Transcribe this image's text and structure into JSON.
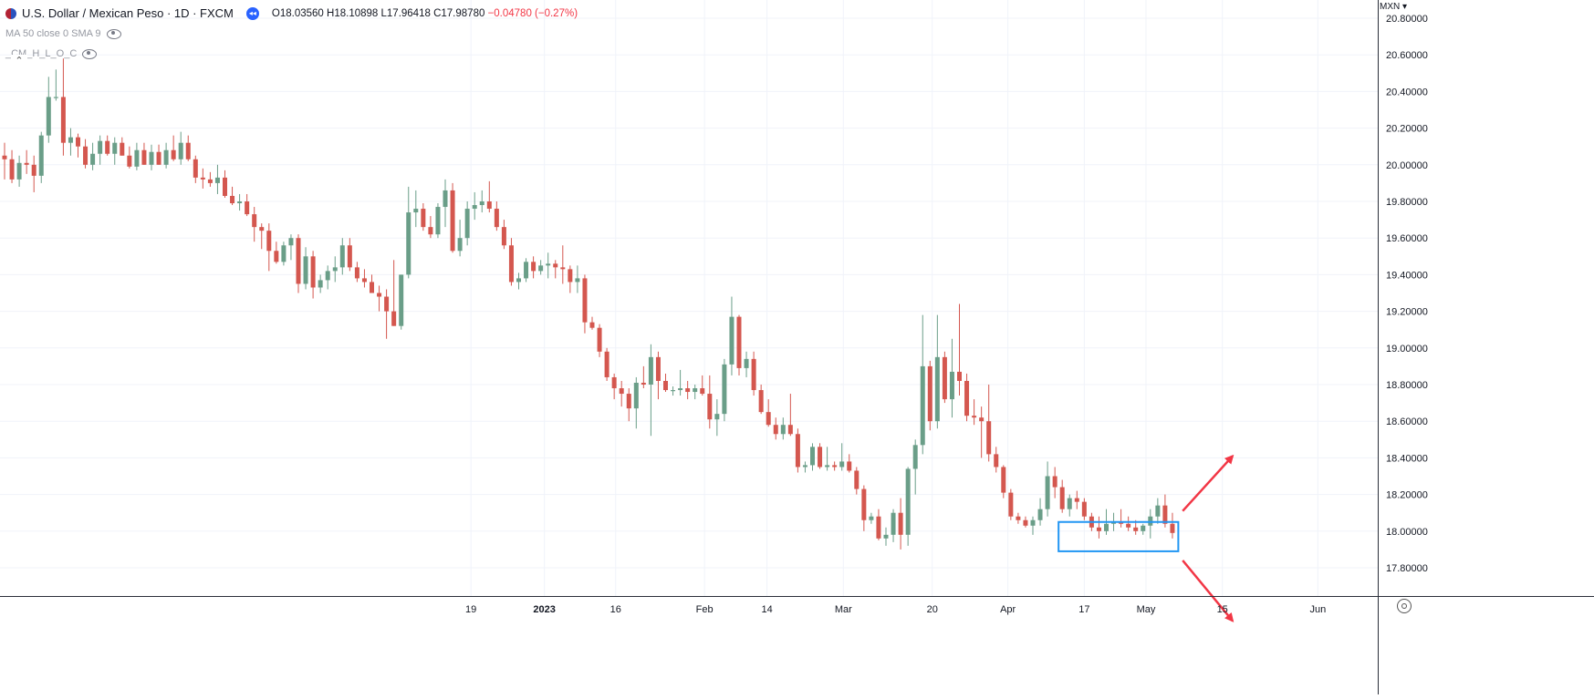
{
  "header": {
    "symbol_title": "U.S. Dollar / Mexican Peso · 1D · FXCM",
    "open_label": "O",
    "open": "18.03560",
    "high_label": "H",
    "high": "18.10898",
    "low_label": "L",
    "low": "17.96418",
    "close_label": "C",
    "close": "17.98780",
    "change": "−0.04780 (−0.27%)",
    "indicator_1": "MA 50 close 0 SMA 9",
    "indicator_2": "_CM_H_L_O_C"
  },
  "price_axis": {
    "currency": "MXN"
  },
  "colors": {
    "up": "#6a9e88",
    "down": "#d4574f",
    "highlight_box": "#2196f3",
    "arrows": "#f23645",
    "grid": "#f0f3fa"
  },
  "icons": [
    "flag-icon",
    "market-status-icon",
    "eye-icon",
    "collapse-icon",
    "settings-icon"
  ],
  "chart_data": {
    "type": "candlestick",
    "title": "U.S. Dollar / Mexican Peso",
    "interval": "1D",
    "ylim": [
      17.62,
      20.78
    ],
    "y_ticks": [
      "20.80000",
      "20.60000",
      "20.40000",
      "20.20000",
      "20.00000",
      "19.80000",
      "19.60000",
      "19.40000",
      "19.20000",
      "19.00000",
      "18.80000",
      "18.60000",
      "18.40000",
      "18.20000",
      "18.00000",
      "17.80000"
    ],
    "x_ticks": [
      {
        "label": "19",
        "bold": false,
        "index": 63.5
      },
      {
        "label": "2023",
        "bold": true,
        "index": 73.5
      },
      {
        "label": "16",
        "bold": false,
        "index": 83.2
      },
      {
        "label": "Feb",
        "bold": false,
        "index": 95.3
      },
      {
        "label": "14",
        "bold": false,
        "index": 103.8
      },
      {
        "label": "Mar",
        "bold": false,
        "index": 114.2
      },
      {
        "label": "20",
        "bold": false,
        "index": 126.3
      },
      {
        "label": "Apr",
        "bold": false,
        "index": 136.6
      },
      {
        "label": "17",
        "bold": false,
        "index": 147.0
      },
      {
        "label": "May",
        "bold": false,
        "index": 155.4
      },
      {
        "label": "15",
        "bold": false,
        "index": 165.8
      },
      {
        "label": "Jun",
        "bold": false,
        "index": 178.8
      }
    ],
    "candles": [
      {
        "o": 20.05,
        "h": 20.12,
        "l": 19.92,
        "c": 20.03
      },
      {
        "o": 20.03,
        "h": 20.08,
        "l": 19.9,
        "c": 19.92
      },
      {
        "o": 19.92,
        "h": 20.05,
        "l": 19.88,
        "c": 20.01
      },
      {
        "o": 20.01,
        "h": 20.08,
        "l": 19.95,
        "c": 20.0
      },
      {
        "o": 20.0,
        "h": 20.05,
        "l": 19.85,
        "c": 19.94
      },
      {
        "o": 19.94,
        "h": 20.18,
        "l": 19.9,
        "c": 20.16
      },
      {
        "o": 20.16,
        "h": 20.48,
        "l": 20.12,
        "c": 20.37
      },
      {
        "o": 20.37,
        "h": 20.52,
        "l": 20.35,
        "c": 20.37
      },
      {
        "o": 20.37,
        "h": 20.58,
        "l": 20.05,
        "c": 20.12
      },
      {
        "o": 20.12,
        "h": 20.2,
        "l": 20.05,
        "c": 20.15
      },
      {
        "o": 20.15,
        "h": 20.17,
        "l": 20.04,
        "c": 20.1
      },
      {
        "o": 20.1,
        "h": 20.14,
        "l": 19.98,
        "c": 20.0
      },
      {
        "o": 20.0,
        "h": 20.12,
        "l": 19.97,
        "c": 20.06
      },
      {
        "o": 20.06,
        "h": 20.16,
        "l": 20.0,
        "c": 20.13
      },
      {
        "o": 20.13,
        "h": 20.16,
        "l": 20.05,
        "c": 20.06
      },
      {
        "o": 20.06,
        "h": 20.15,
        "l": 20.0,
        "c": 20.12
      },
      {
        "o": 20.12,
        "h": 20.15,
        "l": 20.05,
        "c": 20.05
      },
      {
        "o": 20.05,
        "h": 20.1,
        "l": 19.98,
        "c": 19.99
      },
      {
        "o": 19.99,
        "h": 20.12,
        "l": 19.97,
        "c": 20.08
      },
      {
        "o": 20.08,
        "h": 20.12,
        "l": 20.0,
        "c": 20.0
      },
      {
        "o": 20.0,
        "h": 20.11,
        "l": 19.97,
        "c": 20.07
      },
      {
        "o": 20.07,
        "h": 20.11,
        "l": 20.0,
        "c": 20.0
      },
      {
        "o": 20.0,
        "h": 20.12,
        "l": 19.98,
        "c": 20.08
      },
      {
        "o": 20.08,
        "h": 20.16,
        "l": 20.02,
        "c": 20.03
      },
      {
        "o": 20.03,
        "h": 20.18,
        "l": 20.0,
        "c": 20.12
      },
      {
        "o": 20.12,
        "h": 20.16,
        "l": 20.02,
        "c": 20.03
      },
      {
        "o": 20.03,
        "h": 20.05,
        "l": 19.9,
        "c": 19.93
      },
      {
        "o": 19.93,
        "h": 19.98,
        "l": 19.87,
        "c": 19.92
      },
      {
        "o": 19.92,
        "h": 19.96,
        "l": 19.88,
        "c": 19.9
      },
      {
        "o": 19.9,
        "h": 20.0,
        "l": 19.84,
        "c": 19.93
      },
      {
        "o": 19.93,
        "h": 19.97,
        "l": 19.82,
        "c": 19.83
      },
      {
        "o": 19.83,
        "h": 19.88,
        "l": 19.78,
        "c": 19.79
      },
      {
        "o": 19.79,
        "h": 19.84,
        "l": 19.75,
        "c": 19.8
      },
      {
        "o": 19.8,
        "h": 19.84,
        "l": 19.72,
        "c": 19.73
      },
      {
        "o": 19.73,
        "h": 19.77,
        "l": 19.58,
        "c": 19.66
      },
      {
        "o": 19.66,
        "h": 19.68,
        "l": 19.54,
        "c": 19.64
      },
      {
        "o": 19.64,
        "h": 19.68,
        "l": 19.42,
        "c": 19.53
      },
      {
        "o": 19.53,
        "h": 19.58,
        "l": 19.46,
        "c": 19.47
      },
      {
        "o": 19.47,
        "h": 19.58,
        "l": 19.45,
        "c": 19.56
      },
      {
        "o": 19.56,
        "h": 19.62,
        "l": 19.48,
        "c": 19.6
      },
      {
        "o": 19.6,
        "h": 19.62,
        "l": 19.3,
        "c": 19.35
      },
      {
        "o": 19.35,
        "h": 19.55,
        "l": 19.32,
        "c": 19.5
      },
      {
        "o": 19.5,
        "h": 19.53,
        "l": 19.27,
        "c": 19.33
      },
      {
        "o": 19.33,
        "h": 19.4,
        "l": 19.3,
        "c": 19.37
      },
      {
        "o": 19.37,
        "h": 19.45,
        "l": 19.32,
        "c": 19.42
      },
      {
        "o": 19.42,
        "h": 19.5,
        "l": 19.36,
        "c": 19.44
      },
      {
        "o": 19.44,
        "h": 19.6,
        "l": 19.4,
        "c": 19.56
      },
      {
        "o": 19.56,
        "h": 19.6,
        "l": 19.42,
        "c": 19.44
      },
      {
        "o": 19.44,
        "h": 19.47,
        "l": 19.36,
        "c": 19.38
      },
      {
        "o": 19.38,
        "h": 19.43,
        "l": 19.33,
        "c": 19.36
      },
      {
        "o": 19.36,
        "h": 19.4,
        "l": 19.3,
        "c": 19.3
      },
      {
        "o": 19.3,
        "h": 19.34,
        "l": 19.2,
        "c": 19.28
      },
      {
        "o": 19.28,
        "h": 19.32,
        "l": 19.05,
        "c": 19.2
      },
      {
        "o": 19.2,
        "h": 19.48,
        "l": 19.12,
        "c": 19.12
      },
      {
        "o": 19.12,
        "h": 19.4,
        "l": 19.1,
        "c": 19.4
      },
      {
        "o": 19.4,
        "h": 19.88,
        "l": 19.38,
        "c": 19.74
      },
      {
        "o": 19.74,
        "h": 19.86,
        "l": 19.66,
        "c": 19.76
      },
      {
        "o": 19.76,
        "h": 19.79,
        "l": 19.64,
        "c": 19.66
      },
      {
        "o": 19.66,
        "h": 19.72,
        "l": 19.6,
        "c": 19.62
      },
      {
        "o": 19.62,
        "h": 19.79,
        "l": 19.6,
        "c": 19.77
      },
      {
        "o": 19.77,
        "h": 19.92,
        "l": 19.66,
        "c": 19.86
      },
      {
        "o": 19.86,
        "h": 19.9,
        "l": 19.52,
        "c": 19.53
      },
      {
        "o": 19.53,
        "h": 19.7,
        "l": 19.5,
        "c": 19.6
      },
      {
        "o": 19.6,
        "h": 19.8,
        "l": 19.56,
        "c": 19.76
      },
      {
        "o": 19.76,
        "h": 19.85,
        "l": 19.7,
        "c": 19.78
      },
      {
        "o": 19.78,
        "h": 19.86,
        "l": 19.74,
        "c": 19.8
      },
      {
        "o": 19.8,
        "h": 19.91,
        "l": 19.74,
        "c": 19.76
      },
      {
        "o": 19.76,
        "h": 19.8,
        "l": 19.64,
        "c": 19.66
      },
      {
        "o": 19.66,
        "h": 19.7,
        "l": 19.54,
        "c": 19.56
      },
      {
        "o": 19.56,
        "h": 19.6,
        "l": 19.34,
        "c": 19.36
      },
      {
        "o": 19.36,
        "h": 19.41,
        "l": 19.32,
        "c": 19.38
      },
      {
        "o": 19.38,
        "h": 19.49,
        "l": 19.36,
        "c": 19.47
      },
      {
        "o": 19.47,
        "h": 19.5,
        "l": 19.38,
        "c": 19.42
      },
      {
        "o": 19.42,
        "h": 19.48,
        "l": 19.4,
        "c": 19.45
      },
      {
        "o": 19.45,
        "h": 19.52,
        "l": 19.38,
        "c": 19.46
      },
      {
        "o": 19.46,
        "h": 19.48,
        "l": 19.38,
        "c": 19.44
      },
      {
        "o": 19.44,
        "h": 19.56,
        "l": 19.35,
        "c": 19.43
      },
      {
        "o": 19.43,
        "h": 19.45,
        "l": 19.3,
        "c": 19.36
      },
      {
        "o": 19.36,
        "h": 19.45,
        "l": 19.3,
        "c": 19.38
      },
      {
        "o": 19.38,
        "h": 19.4,
        "l": 19.08,
        "c": 19.14
      },
      {
        "o": 19.14,
        "h": 19.17,
        "l": 19.1,
        "c": 19.11
      },
      {
        "o": 19.11,
        "h": 19.13,
        "l": 18.95,
        "c": 18.98
      },
      {
        "o": 18.98,
        "h": 19.0,
        "l": 18.82,
        "c": 18.84
      },
      {
        "o": 18.84,
        "h": 18.86,
        "l": 18.72,
        "c": 18.78
      },
      {
        "o": 18.78,
        "h": 18.82,
        "l": 18.68,
        "c": 18.75
      },
      {
        "o": 18.75,
        "h": 18.78,
        "l": 18.6,
        "c": 18.67
      },
      {
        "o": 18.67,
        "h": 18.84,
        "l": 18.56,
        "c": 18.81
      },
      {
        "o": 18.81,
        "h": 18.9,
        "l": 18.78,
        "c": 18.8
      },
      {
        "o": 18.8,
        "h": 19.02,
        "l": 18.52,
        "c": 18.95
      },
      {
        "o": 18.95,
        "h": 18.98,
        "l": 18.72,
        "c": 18.82
      },
      {
        "o": 18.82,
        "h": 18.86,
        "l": 18.76,
        "c": 18.77
      },
      {
        "o": 18.77,
        "h": 18.79,
        "l": 18.74,
        "c": 18.77
      },
      {
        "o": 18.77,
        "h": 18.88,
        "l": 18.74,
        "c": 18.78
      },
      {
        "o": 18.78,
        "h": 18.82,
        "l": 18.72,
        "c": 18.76
      },
      {
        "o": 18.76,
        "h": 18.8,
        "l": 18.72,
        "c": 18.78
      },
      {
        "o": 18.78,
        "h": 18.85,
        "l": 18.74,
        "c": 18.75
      },
      {
        "o": 18.75,
        "h": 18.85,
        "l": 18.56,
        "c": 18.61
      },
      {
        "o": 18.61,
        "h": 18.72,
        "l": 18.52,
        "c": 18.64
      },
      {
        "o": 18.64,
        "h": 18.94,
        "l": 18.6,
        "c": 18.91
      },
      {
        "o": 18.91,
        "h": 19.28,
        "l": 18.85,
        "c": 19.17
      },
      {
        "o": 19.17,
        "h": 19.18,
        "l": 18.85,
        "c": 18.89
      },
      {
        "o": 18.89,
        "h": 18.98,
        "l": 18.84,
        "c": 18.94
      },
      {
        "o": 18.94,
        "h": 18.98,
        "l": 18.74,
        "c": 18.77
      },
      {
        "o": 18.77,
        "h": 18.8,
        "l": 18.64,
        "c": 18.65
      },
      {
        "o": 18.65,
        "h": 18.72,
        "l": 18.57,
        "c": 18.58
      },
      {
        "o": 18.58,
        "h": 18.62,
        "l": 18.5,
        "c": 18.53
      },
      {
        "o": 18.53,
        "h": 18.62,
        "l": 18.5,
        "c": 18.58
      },
      {
        "o": 18.58,
        "h": 18.75,
        "l": 18.52,
        "c": 18.53
      },
      {
        "o": 18.53,
        "h": 18.56,
        "l": 18.32,
        "c": 18.35
      },
      {
        "o": 18.35,
        "h": 18.38,
        "l": 18.32,
        "c": 18.36
      },
      {
        "o": 18.36,
        "h": 18.48,
        "l": 18.33,
        "c": 18.46
      },
      {
        "o": 18.46,
        "h": 18.48,
        "l": 18.34,
        "c": 18.35
      },
      {
        "o": 18.35,
        "h": 18.46,
        "l": 18.33,
        "c": 18.36
      },
      {
        "o": 18.36,
        "h": 18.38,
        "l": 18.33,
        "c": 18.35
      },
      {
        "o": 18.35,
        "h": 18.48,
        "l": 18.33,
        "c": 18.38
      },
      {
        "o": 18.38,
        "h": 18.42,
        "l": 18.32,
        "c": 18.33
      },
      {
        "o": 18.33,
        "h": 18.35,
        "l": 18.2,
        "c": 18.23
      },
      {
        "o": 18.23,
        "h": 18.25,
        "l": 18.0,
        "c": 18.06
      },
      {
        "o": 18.06,
        "h": 18.1,
        "l": 18.04,
        "c": 18.08
      },
      {
        "o": 18.08,
        "h": 18.12,
        "l": 17.95,
        "c": 17.96
      },
      {
        "o": 17.96,
        "h": 18.02,
        "l": 17.92,
        "c": 17.98
      },
      {
        "o": 17.98,
        "h": 18.12,
        "l": 17.94,
        "c": 18.1
      },
      {
        "o": 18.1,
        "h": 18.18,
        "l": 17.9,
        "c": 17.98
      },
      {
        "o": 17.98,
        "h": 18.35,
        "l": 17.92,
        "c": 18.34
      },
      {
        "o": 18.34,
        "h": 18.5,
        "l": 18.2,
        "c": 18.47
      },
      {
        "o": 18.47,
        "h": 19.18,
        "l": 18.42,
        "c": 18.9
      },
      {
        "o": 18.9,
        "h": 18.93,
        "l": 18.55,
        "c": 18.6
      },
      {
        "o": 18.6,
        "h": 19.18,
        "l": 18.56,
        "c": 18.95
      },
      {
        "o": 18.95,
        "h": 18.98,
        "l": 18.7,
        "c": 18.72
      },
      {
        "o": 18.72,
        "h": 19.05,
        "l": 18.62,
        "c": 18.87
      },
      {
        "o": 18.87,
        "h": 19.24,
        "l": 18.74,
        "c": 18.82
      },
      {
        "o": 18.82,
        "h": 18.86,
        "l": 18.6,
        "c": 18.63
      },
      {
        "o": 18.63,
        "h": 18.72,
        "l": 18.58,
        "c": 18.62
      },
      {
        "o": 18.62,
        "h": 18.68,
        "l": 18.4,
        "c": 18.6
      },
      {
        "o": 18.6,
        "h": 18.8,
        "l": 18.38,
        "c": 18.42
      },
      {
        "o": 18.42,
        "h": 18.46,
        "l": 18.32,
        "c": 18.35
      },
      {
        "o": 18.35,
        "h": 18.36,
        "l": 18.18,
        "c": 18.21
      },
      {
        "o": 18.21,
        "h": 18.23,
        "l": 18.06,
        "c": 18.08
      },
      {
        "o": 18.08,
        "h": 18.1,
        "l": 18.04,
        "c": 18.06
      },
      {
        "o": 18.06,
        "h": 18.08,
        "l": 18.02,
        "c": 18.03
      },
      {
        "o": 18.03,
        "h": 18.08,
        "l": 17.98,
        "c": 18.06
      },
      {
        "o": 18.06,
        "h": 18.18,
        "l": 18.03,
        "c": 18.12
      },
      {
        "o": 18.12,
        "h": 18.38,
        "l": 18.08,
        "c": 18.3
      },
      {
        "o": 18.3,
        "h": 18.35,
        "l": 18.18,
        "c": 18.24
      },
      {
        "o": 18.24,
        "h": 18.28,
        "l": 18.1,
        "c": 18.12
      },
      {
        "o": 18.12,
        "h": 18.2,
        "l": 18.08,
        "c": 18.18
      },
      {
        "o": 18.18,
        "h": 18.22,
        "l": 18.12,
        "c": 18.16
      },
      {
        "o": 18.16,
        "h": 18.18,
        "l": 18.06,
        "c": 18.08
      },
      {
        "o": 18.08,
        "h": 18.1,
        "l": 18.0,
        "c": 18.02
      },
      {
        "o": 18.02,
        "h": 18.08,
        "l": 17.96,
        "c": 18.0
      },
      {
        "o": 18.0,
        "h": 18.12,
        "l": 17.98,
        "c": 18.04
      },
      {
        "o": 18.04,
        "h": 18.1,
        "l": 18.0,
        "c": 18.05
      },
      {
        "o": 18.05,
        "h": 18.12,
        "l": 18.02,
        "c": 18.04
      },
      {
        "o": 18.04,
        "h": 18.08,
        "l": 18.0,
        "c": 18.02
      },
      {
        "o": 18.02,
        "h": 18.06,
        "l": 17.98,
        "c": 18.0
      },
      {
        "o": 18.0,
        "h": 18.04,
        "l": 17.98,
        "c": 18.03
      },
      {
        "o": 18.03,
        "h": 18.12,
        "l": 17.96,
        "c": 18.08
      },
      {
        "o": 18.08,
        "h": 18.18,
        "l": 18.04,
        "c": 18.14
      },
      {
        "o": 18.14,
        "h": 18.2,
        "l": 18.02,
        "c": 18.04
      },
      {
        "o": 18.04,
        "h": 18.1,
        "l": 17.96,
        "c": 17.99
      }
    ],
    "highlight_box": {
      "x_start": 143.5,
      "x_end": 159.8,
      "y_top": 18.05,
      "y_bottom": 17.89
    },
    "arrows": [
      {
        "direction": "up",
        "from": [
          160.4,
          18.11
        ],
        "to": [
          167.2,
          18.41
        ]
      },
      {
        "direction": "down",
        "from": [
          160.4,
          17.84
        ],
        "to": [
          167.2,
          17.51
        ]
      }
    ]
  }
}
